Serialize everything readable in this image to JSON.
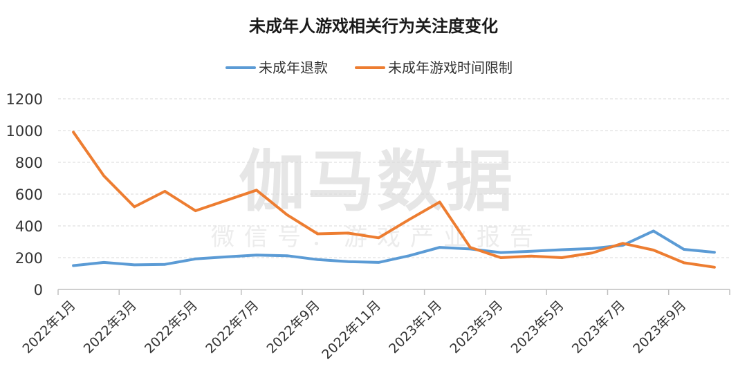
{
  "watermark": {
    "main": "伽马数据",
    "sub": "微信号：游戏产业报告"
  },
  "chart_data": {
    "type": "line",
    "title": "未成年人游戏相关行为关注度变化",
    "legend_position": "top",
    "grid": true,
    "ylim": [
      0,
      1200
    ],
    "yticks": [
      "0",
      "200",
      "400",
      "600",
      "800",
      "1000",
      "1200"
    ],
    "x": [
      "2022年1月",
      "2022年2月",
      "2022年3月",
      "2022年4月",
      "2022年5月",
      "2022年6月",
      "2022年7月",
      "2022年8月",
      "2022年9月",
      "2022年10月",
      "2022年11月",
      "2022年12月",
      "2023年1月",
      "2023年2月",
      "2023年3月",
      "2023年4月",
      "2023年5月",
      "2023年6月",
      "2023年7月",
      "2023年8月",
      "2023年9月",
      "2023年10月"
    ],
    "xtick_labels": [
      "2022年1月",
      "2022年3月",
      "2022年5月",
      "2022年7月",
      "2022年9月",
      "2022年11月",
      "2023年1月",
      "2023年3月",
      "2023年5月",
      "2023年7月",
      "2023年9月"
    ],
    "series": [
      {
        "name": "未成年退款",
        "color": "#5B9BD5",
        "values": [
          150,
          170,
          155,
          158,
          192,
          205,
          216,
          212,
          188,
          175,
          170,
          212,
          265,
          255,
          232,
          240,
          250,
          258,
          278,
          368,
          252,
          234
        ]
      },
      {
        "name": "未成年游戏时间限制",
        "color": "#ED7D31",
        "values": [
          990,
          715,
          520,
          618,
          495,
          560,
          625,
          470,
          350,
          355,
          325,
          440,
          550,
          265,
          200,
          210,
          200,
          230,
          290,
          248,
          168,
          140
        ]
      }
    ]
  }
}
